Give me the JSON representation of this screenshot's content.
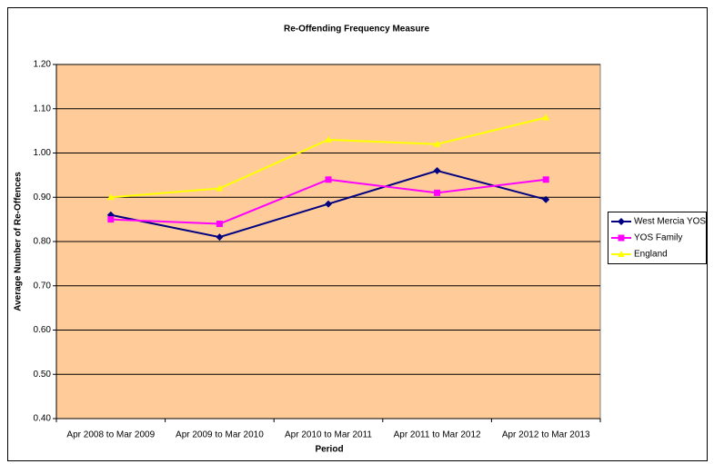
{
  "chart_data": {
    "type": "line",
    "title": "Re-Offending Frequency Measure",
    "x_label": "Period",
    "y_label": "Average Number of Re-Offences",
    "categories": [
      "Apr 2008 to Mar 2009",
      "Apr 2009 to Mar 2010",
      "Apr 2010 to Mar 2011",
      "Apr 2011 to Mar 2012",
      "Apr 2012 to Mar 2013"
    ],
    "series": [
      {
        "name": "West Mercia YOS",
        "color": "#000080",
        "marker": "diamond",
        "values": [
          0.86,
          0.81,
          0.885,
          0.96,
          0.895
        ]
      },
      {
        "name": "YOS Family",
        "color": "#ff00ff",
        "marker": "square",
        "values": [
          0.85,
          0.84,
          0.94,
          0.91,
          0.94
        ]
      },
      {
        "name": "England",
        "color": "#ffff00",
        "marker": "triangle",
        "values": [
          0.9,
          0.92,
          1.03,
          1.02,
          1.08
        ]
      }
    ],
    "ylim": [
      0.4,
      1.2
    ],
    "yticks": [
      {
        "value": 0.4,
        "label": "0.40"
      },
      {
        "value": 0.5,
        "label": "0.50"
      },
      {
        "value": 0.6,
        "label": "0.60"
      },
      {
        "value": 0.7,
        "label": "0.70"
      },
      {
        "value": 0.8,
        "label": "0.80"
      },
      {
        "value": 0.9,
        "label": "0.90"
      },
      {
        "value": 1.0,
        "label": "1.00"
      },
      {
        "value": 1.1,
        "label": "1.10"
      },
      {
        "value": 1.2,
        "label": "1.20"
      }
    ],
    "grid": true,
    "plot_background": "#ffcc99",
    "legend": "right"
  }
}
